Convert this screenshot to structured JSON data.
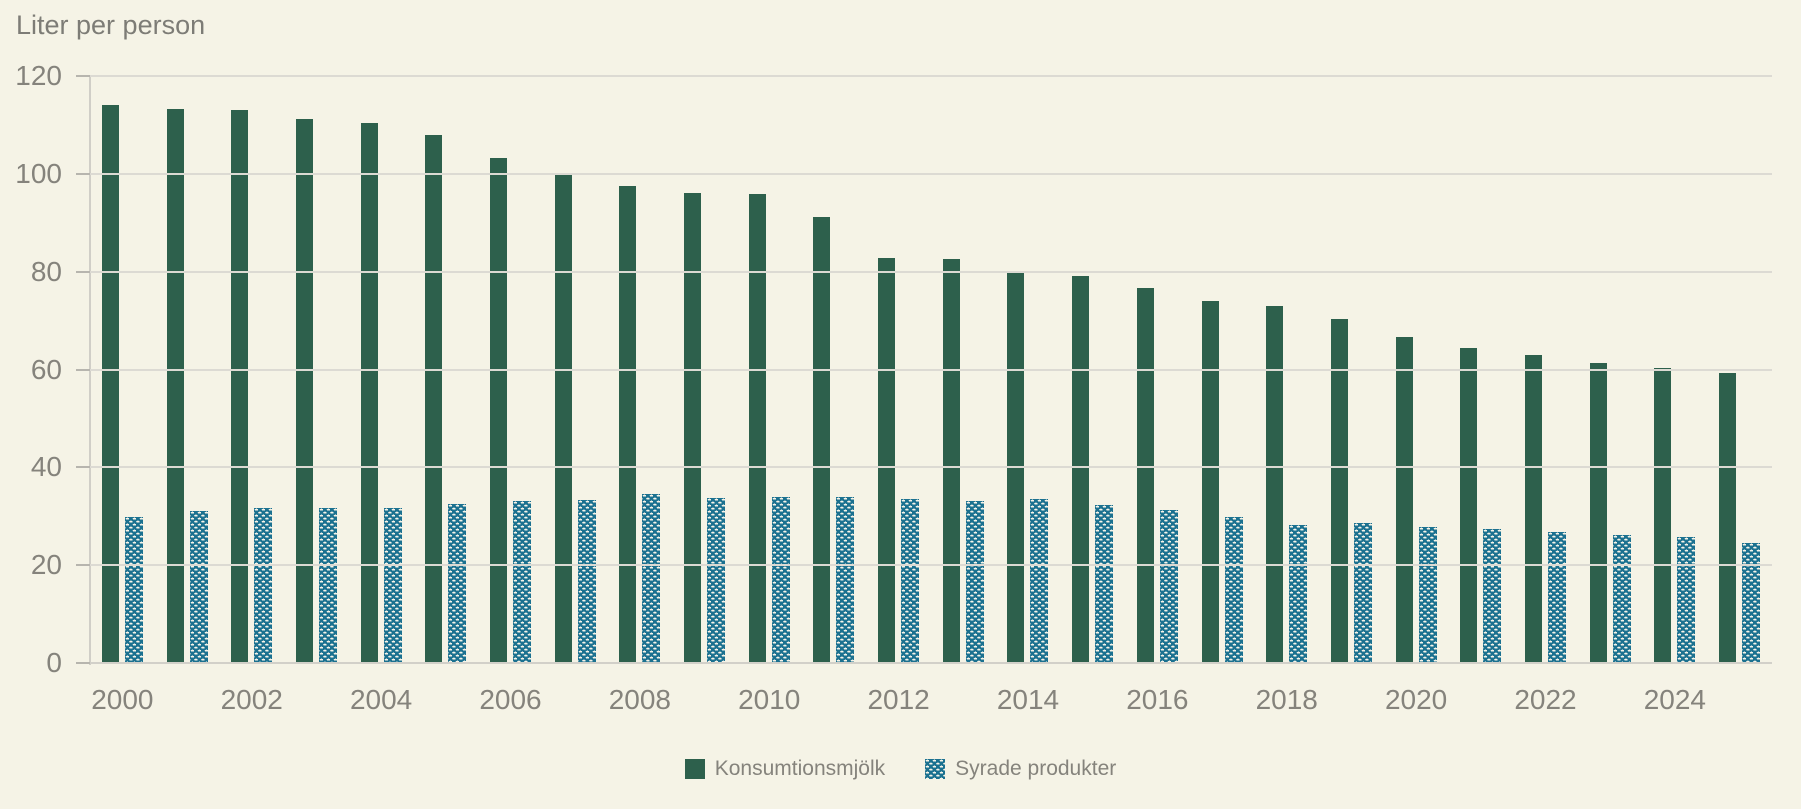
{
  "title": "Liter per person",
  "colors": {
    "background": "#f5f3e6",
    "gridline": "#dcdad3",
    "baseline": "#d2d0c9",
    "axis_line": "#d0cec7",
    "tick": "#b7b5ae",
    "axis_text": "#85837c",
    "title_text": "#7d7c76",
    "milk_green": "#2d604c",
    "syrade_teal": "#1b7190",
    "pattern_dot": "#f6f4e9"
  },
  "chart_data": {
    "type": "bar",
    "title": "Liter per person",
    "ylabel": "Liter per person",
    "xlabel": "",
    "ylim": [
      0,
      120
    ],
    "y_ticks": [
      0,
      20,
      40,
      60,
      80,
      100,
      120
    ],
    "grid": true,
    "legend_position": "bottom",
    "categories": [
      2000,
      2001,
      2002,
      2003,
      2004,
      2005,
      2006,
      2007,
      2008,
      2009,
      2010,
      2011,
      2012,
      2013,
      2014,
      2015,
      2016,
      2017,
      2018,
      2019,
      2020,
      2021,
      2022,
      2023,
      2024,
      2025
    ],
    "x_tick_labels": [
      "2000",
      "",
      "2002",
      "",
      "2004",
      "",
      "2006",
      "",
      "2008",
      "",
      "2010",
      "",
      "2012",
      "",
      "2014",
      "",
      "2016",
      "",
      "2018",
      "",
      "2020",
      "",
      "2022",
      "",
      "2024",
      ""
    ],
    "series": [
      {
        "name": "Konsumtionsmjölk",
        "color": "#2d604c",
        "pattern": "solid",
        "values": [
          114.1,
          113.2,
          113.0,
          111.3,
          110.4,
          108.0,
          103.3,
          100.0,
          97.6,
          96.0,
          95.8,
          91.2,
          82.8,
          82.5,
          80.2,
          79.2,
          76.7,
          74.1,
          72.9,
          70.4,
          66.6,
          64.5,
          62.9,
          61.4,
          60.4,
          59.2
        ]
      },
      {
        "name": "Syrade produkter",
        "color": "#1b7190",
        "pattern": "dotted",
        "values": [
          29.8,
          31.0,
          31.7,
          31.7,
          31.7,
          32.5,
          33.2,
          33.4,
          34.6,
          33.7,
          33.9,
          33.9,
          33.6,
          33.2,
          33.5,
          32.4,
          31.2,
          29.8,
          28.3,
          28.6,
          27.9,
          27.4,
          26.8,
          26.2,
          25.8,
          24.5
        ]
      }
    ]
  },
  "legend": {
    "items": [
      {
        "label": "Konsumtionsmjölk"
      },
      {
        "label": "Syrade produkter"
      }
    ]
  }
}
